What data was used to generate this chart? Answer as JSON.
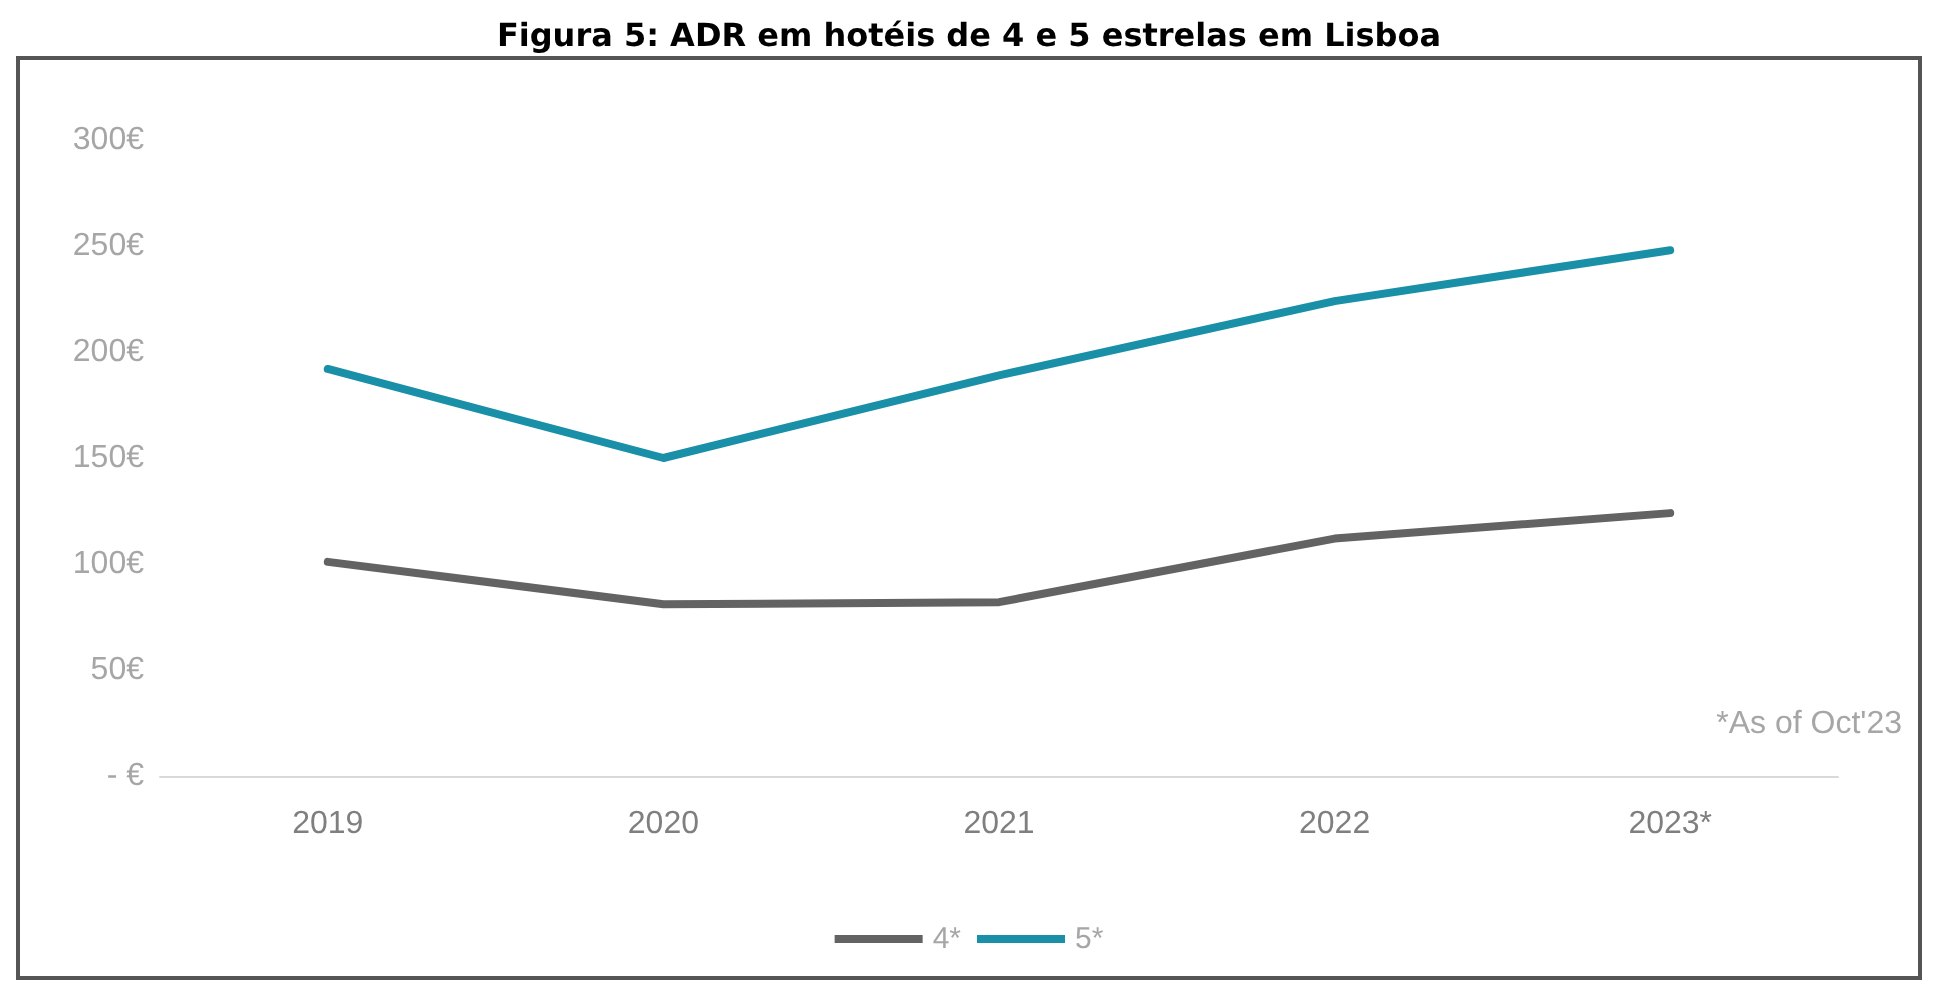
{
  "chart_data": {
    "type": "line",
    "title": "Figura 5: ADR em hotéis de 4 e 5 estrelas em Lisboa",
    "categories": [
      "2019",
      "2020",
      "2021",
      "2022",
      "2023*"
    ],
    "series": [
      {
        "name": "4*",
        "color": "#636363",
        "values": [
          101,
          81,
          82,
          112,
          124
        ]
      },
      {
        "name": "5*",
        "color": "#1a8fa8",
        "values": [
          192,
          150,
          189,
          224,
          248
        ]
      }
    ],
    "ylim": [
      0,
      300
    ],
    "yticks": [
      {
        "value": 0,
        "label": "- €"
      },
      {
        "value": 50,
        "label": "50€"
      },
      {
        "value": 100,
        "label": "100€"
      },
      {
        "value": 150,
        "label": "150€"
      },
      {
        "value": 200,
        "label": "200€"
      },
      {
        "value": 250,
        "label": "250€"
      },
      {
        "value": 300,
        "label": "300€"
      }
    ],
    "annotations": [
      "*As of Oct'23"
    ],
    "grid": false,
    "legend": "bottom",
    "marker": "none",
    "line_style": "solid"
  }
}
